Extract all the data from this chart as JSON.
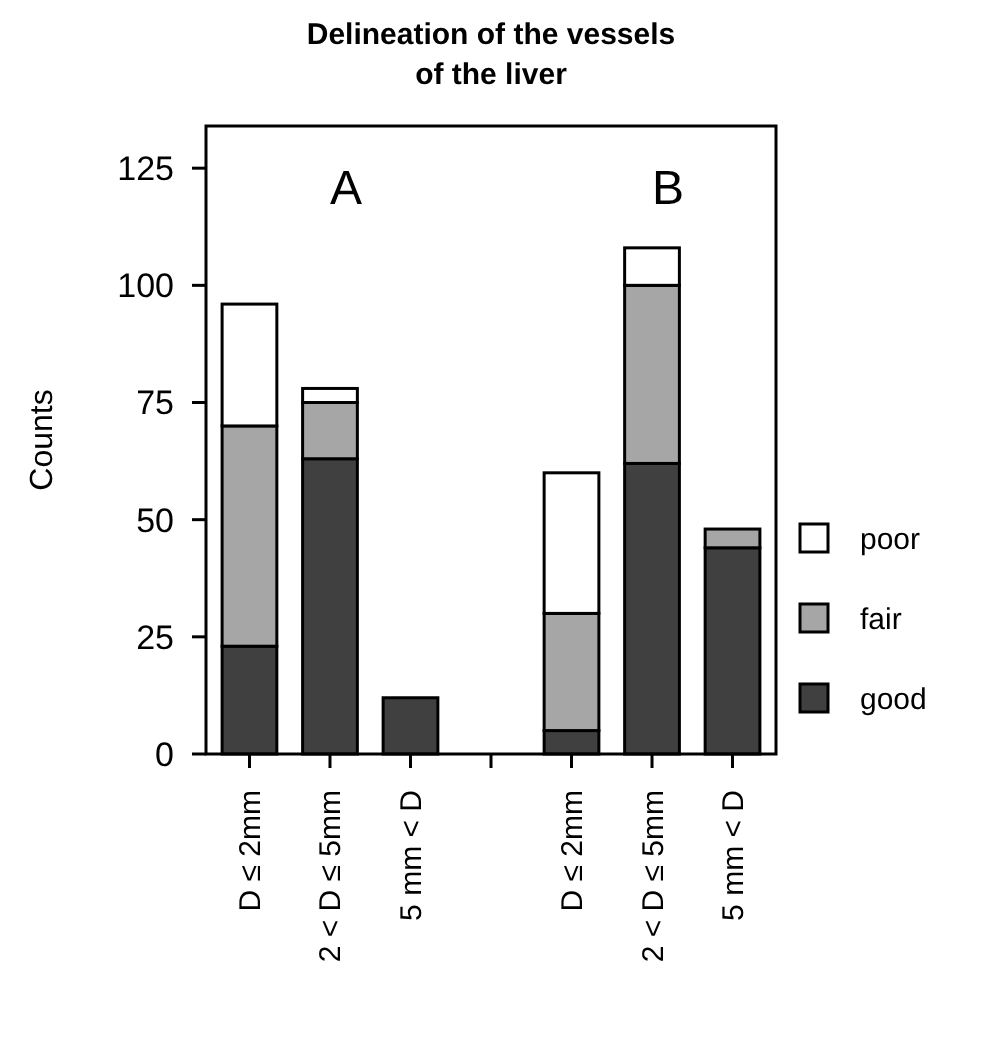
{
  "chart_data": {
    "type": "bar",
    "title": "Delineation of the vessels of the liver",
    "ylabel": "Counts",
    "categories": [
      "D ≤ 2mm",
      "2 < D ≤ 5mm",
      "5 mm < D",
      null,
      "D ≤ 2mm",
      "2 < D ≤ 5mm",
      "5 mm < D"
    ],
    "series": [
      {
        "name": "good",
        "color": "#404040",
        "values": [
          23,
          63,
          12,
          null,
          5,
          62,
          44
        ]
      },
      {
        "name": "fair",
        "color": "#a6a6a6",
        "values": [
          47,
          12,
          0,
          null,
          25,
          38,
          4
        ]
      },
      {
        "name": "poor",
        "color": "#ffffff",
        "values": [
          26,
          3,
          0,
          null,
          30,
          8,
          0
        ]
      }
    ],
    "stacked": true,
    "ylim": [
      0,
      134
    ],
    "yticks": [
      0,
      25,
      50,
      75,
      100,
      125
    ],
    "legend": "right",
    "annotations": [
      "A",
      "B"
    ]
  }
}
